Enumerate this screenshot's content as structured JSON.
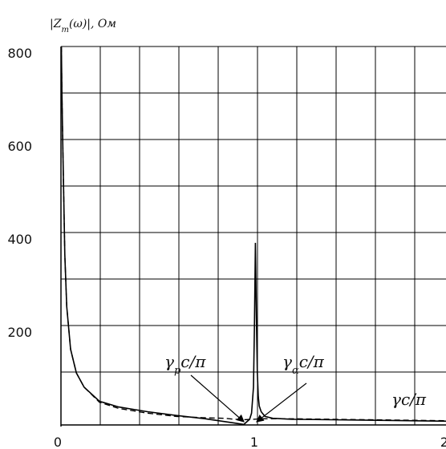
{
  "chart_data": {
    "type": "line",
    "title": "",
    "ylabel": "|Z_m(ω)|, Ом",
    "xlabel": "",
    "xlim": [
      0,
      2
    ],
    "ylim": [
      0,
      800
    ],
    "grid": true,
    "yticks": [
      "200",
      "400",
      "600",
      "800"
    ],
    "xticks": [
      "0",
      "1",
      "2"
    ],
    "series": [
      {
        "style": "solid",
        "color": "#000000",
        "x": [
          0.002,
          0.005,
          0.01,
          0.02,
          0.03,
          0.05,
          0.08,
          0.12,
          0.2,
          0.3,
          0.45,
          0.6,
          0.75,
          0.9,
          0.95,
          0.98,
          0.99,
          1.0,
          1.005,
          1.01,
          1.015,
          1.02,
          1.025,
          1.03,
          1.04,
          1.06,
          1.1,
          1.2,
          1.4,
          1.6,
          1.8,
          2.0
        ],
        "y": [
          800,
          700,
          580,
          360,
          250,
          160,
          110,
          80,
          50,
          38,
          28,
          20,
          13,
          4,
          1,
          12,
          25,
          80,
          210,
          385,
          230,
          110,
          60,
          40,
          28,
          18,
          14,
          12,
          11,
          10,
          9,
          8
        ]
      },
      {
        "style": "dashed",
        "color": "#000000",
        "x": [
          0.002,
          0.005,
          0.01,
          0.02,
          0.03,
          0.05,
          0.08,
          0.12,
          0.2,
          0.3,
          0.45,
          0.6,
          0.75,
          0.85,
          0.9,
          0.95,
          1.0,
          1.05,
          1.1,
          1.2,
          1.4,
          1.6,
          1.8,
          2.0
        ],
        "y": [
          800,
          700,
          580,
          360,
          250,
          160,
          110,
          80,
          48,
          35,
          25,
          18,
          15,
          14,
          12,
          11,
          12,
          13,
          13,
          13,
          12,
          11,
          10,
          9
        ]
      }
    ],
    "annotations": [
      {
        "text": "γ_р c/π"
      },
      {
        "text": "γ_α c/π"
      },
      {
        "text": "γc/π"
      }
    ]
  },
  "labels": {
    "y_axis": "|Z",
    "y_axis_sub": "m",
    "y_axis_rest": "(ω)|, Ом",
    "ann1_main": "γ",
    "ann1_sub": "р",
    "ann1_rest": "c/π",
    "ann2_main": "γ",
    "ann2_sub": "α",
    "ann2_rest": "c/π",
    "ann3": "γc/π"
  }
}
